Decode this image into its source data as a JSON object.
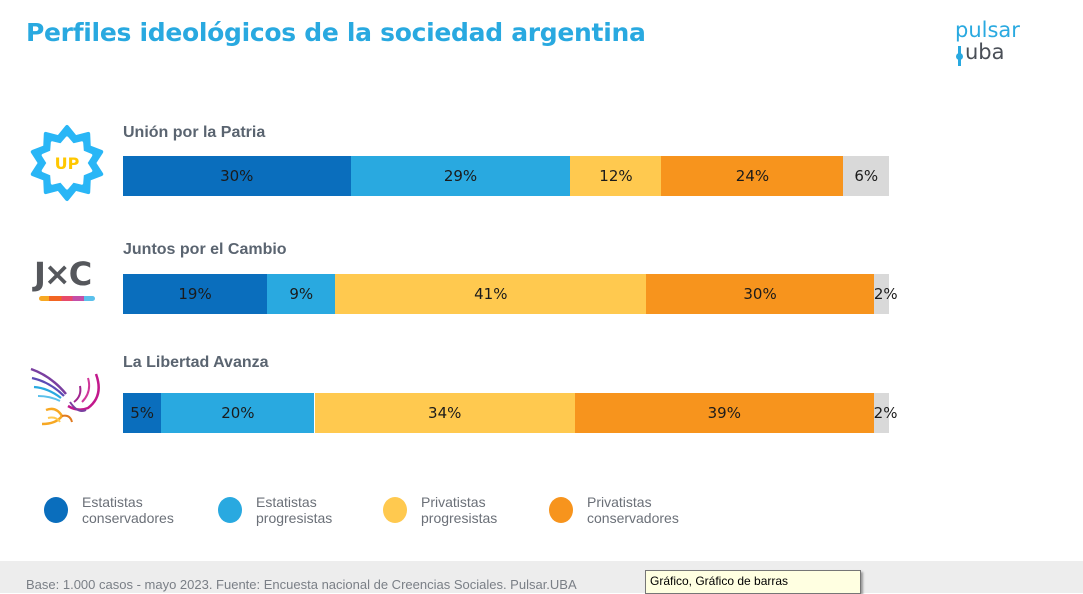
{
  "title": "Perfiles ideológicos de la sociedad argentina",
  "logo": {
    "line1": "pulsar",
    "line2": "uba"
  },
  "colors": {
    "title": "#29a9e0",
    "estatistas_conservadores": "#0a6ebd",
    "estatistas_progresistas": "#29a9e0",
    "privatistas_progresistas": "#ffc94f",
    "privatistas_conservadores": "#f7941d",
    "no_sabe": "#d9d9d9"
  },
  "chart_data": {
    "type": "bar",
    "orientation": "horizontal-stacked-100",
    "title": "Perfiles ideológicos de la sociedad argentina",
    "xlabel": "",
    "ylabel": "",
    "xlim": [
      0,
      100
    ],
    "categories": [
      "Unión por la Patria",
      "Juntos por el Cambio",
      "La Libertad Avanza"
    ],
    "series": [
      {
        "name": "Estatistas conservadores",
        "color": "#0a6ebd",
        "values": [
          30,
          19,
          5
        ]
      },
      {
        "name": "Estatistas progresistas",
        "color": "#29a9e0",
        "values": [
          29,
          9,
          20
        ]
      },
      {
        "name": "Privatistas progresistas",
        "color": "#ffc94f",
        "values": [
          12,
          41,
          34
        ]
      },
      {
        "name": "Privatistas conservadores",
        "color": "#f7941d",
        "values": [
          24,
          30,
          39
        ]
      },
      {
        "name": "",
        "color": "#d9d9d9",
        "values": [
          6,
          2,
          2
        ]
      }
    ],
    "legend": {
      "position": "bottom",
      "entries": [
        [
          "Estatistas",
          "conservadores"
        ],
        [
          "Estatistas",
          "progresistas"
        ],
        [
          "Privatistas",
          "progresistas"
        ],
        [
          "Privatistas",
          "conservadores"
        ]
      ]
    },
    "grid": false
  },
  "parties": [
    {
      "name": "Unión por la Patria",
      "icon": "up-sun-logo",
      "icon_text": "UP"
    },
    {
      "name": "Juntos por el Cambio",
      "icon": "jxc-logo",
      "icon_text": "J×C"
    },
    {
      "name": "La Libertad Avanza",
      "icon": "eagle-logo"
    }
  ],
  "footer": {
    "text": "Base: 1.000 casos - mayo 2023. Fuente: Encuesta nacional de Creencias Sociales. Pulsar.UBA"
  },
  "tooltip": {
    "text": "Gráfico, Gráfico de barras"
  }
}
